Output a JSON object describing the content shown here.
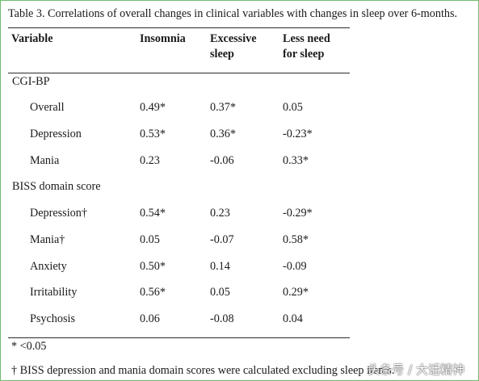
{
  "caption": "Table 3. Correlations of overall changes in clinical variables with changes in sleep over 6-months.",
  "header": {
    "variable": "Variable",
    "col1": "Insomnia",
    "col2_line1": "Excessive",
    "col2_line2": "sleep",
    "col3_line1": "Less need",
    "col3_line2": "for sleep"
  },
  "sections": [
    {
      "title": "CGI-BP",
      "rows": [
        {
          "label": "Overall",
          "insomnia": "0.49*",
          "excessive": "0.37*",
          "less": "0.05"
        },
        {
          "label": "Depression",
          "insomnia": "0.53*",
          "excessive": "0.36*",
          "less": "-0.23*"
        },
        {
          "label": "Mania",
          "insomnia": "0.23",
          "excessive": "-0.06",
          "less": "0.33*"
        }
      ]
    },
    {
      "title": "BISS domain score",
      "rows": [
        {
          "label": "Depression†",
          "insomnia": "0.54*",
          "excessive": "0.23",
          "less": "-0.29*"
        },
        {
          "label": "Mania†",
          "insomnia": "0.05",
          "excessive": "-0.07",
          "less": "0.58*"
        },
        {
          "label": "Anxiety",
          "insomnia": "0.50*",
          "excessive": "0.14",
          "less": "-0.09"
        },
        {
          "label": "Irritability",
          "insomnia": "0.56*",
          "excessive": "0.05",
          "less": "0.29*"
        },
        {
          "label": "Psychosis",
          "insomnia": "0.06",
          "excessive": "-0.08",
          "less": "0.04"
        }
      ]
    }
  ],
  "footnotes": {
    "significance": "* <0.05",
    "dagger": "† BISS depression and mania domain scores were calculated excluding sleep items."
  },
  "watermark": "头条号 / 大话精神"
}
